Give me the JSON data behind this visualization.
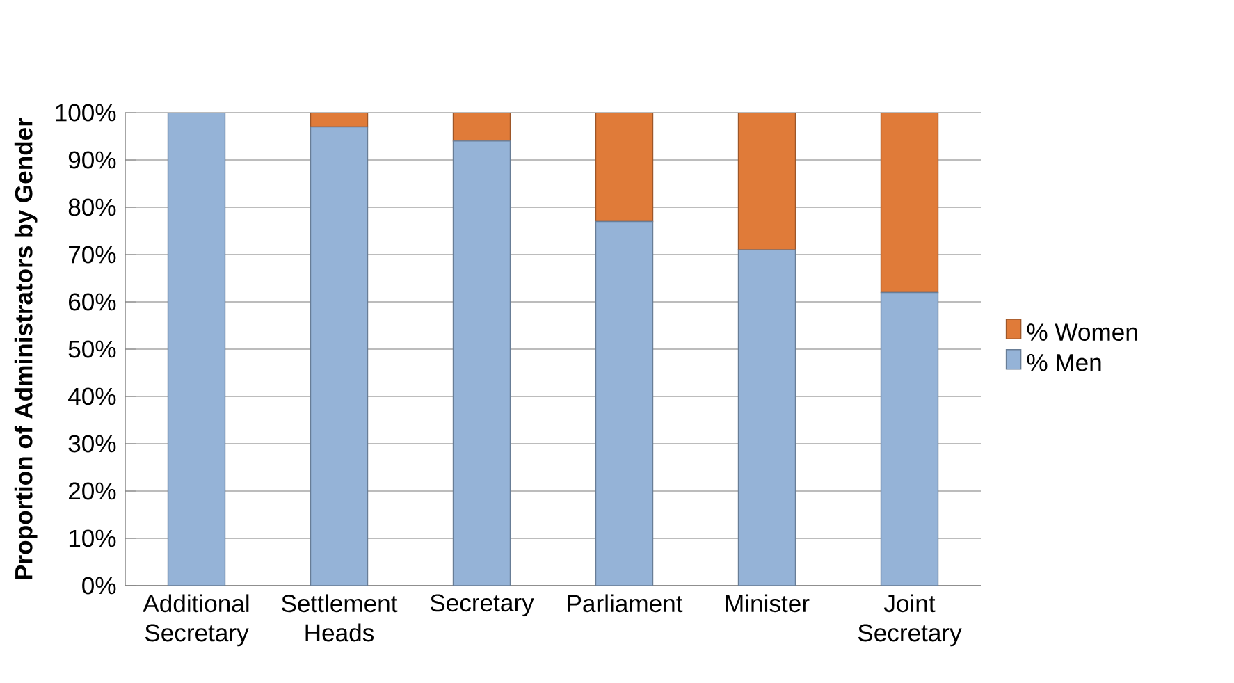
{
  "chart_data": {
    "type": "bar",
    "stacked": true,
    "ylabel": "Proportion of Administrators by Gender",
    "categories": [
      "Additional Secretary",
      "Settlement Heads",
      "Secretary",
      "Parliament",
      "Minister",
      "Joint Secretary"
    ],
    "series": [
      {
        "name": "% Men",
        "color": "#95b3d7",
        "values": [
          100,
          97,
          94,
          77,
          71,
          62
        ]
      },
      {
        "name": "% Women",
        "color": "#e07b39",
        "values": [
          0,
          3,
          6,
          23,
          29,
          38
        ]
      }
    ],
    "ylim": [
      0,
      100
    ],
    "yticks": [
      {
        "value": 0,
        "label": "0%"
      },
      {
        "value": 10,
        "label": "10%"
      },
      {
        "value": 20,
        "label": "20%"
      },
      {
        "value": 30,
        "label": "30%"
      },
      {
        "value": 40,
        "label": "40%"
      },
      {
        "value": 50,
        "label": "50%"
      },
      {
        "value": 60,
        "label": "60%"
      },
      {
        "value": 70,
        "label": "70%"
      },
      {
        "value": 80,
        "label": "80%"
      },
      {
        "value": 90,
        "label": "90%"
      },
      {
        "value": 100,
        "label": "100%"
      }
    ],
    "grid": "y",
    "legend": "right"
  }
}
